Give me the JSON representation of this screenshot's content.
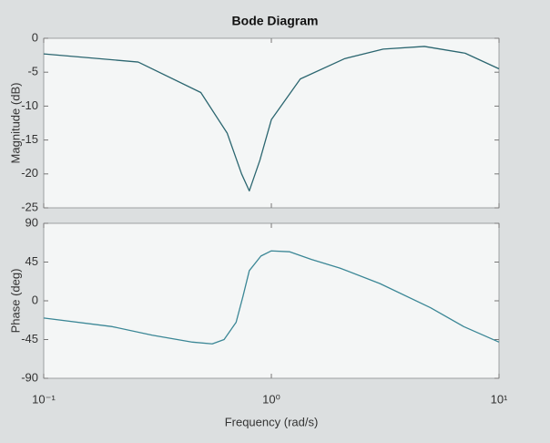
{
  "chart_data": [
    {
      "type": "line",
      "title": "Bode Diagram",
      "ylabel": "Magnitude (dB)",
      "xscale": "log",
      "x": [
        0.1,
        0.26,
        0.49,
        0.64,
        0.74,
        0.8,
        0.89,
        1.0,
        1.34,
        2.1,
        3.1,
        4.7,
        7.1,
        10
      ],
      "values": [
        -2.3,
        -3.5,
        -8,
        -14,
        -20,
        -22.5,
        -18,
        -12,
        -6,
        -3,
        -1.6,
        -1.2,
        -2.2,
        -4.5
      ],
      "color": "#2b6670",
      "xlim": [
        0.1,
        10
      ],
      "ylim": [
        -25,
        0
      ],
      "yticks": [
        0,
        -5,
        -10,
        -15,
        -20,
        -25
      ]
    },
    {
      "type": "line",
      "ylabel": "Phase (deg)",
      "xlabel": "Frequency  (rad/s)",
      "xscale": "log",
      "x": [
        0.1,
        0.2,
        0.3,
        0.45,
        0.55,
        0.62,
        0.7,
        0.75,
        0.8,
        0.9,
        1.0,
        1.2,
        1.5,
        2,
        3,
        5,
        7,
        10
      ],
      "values": [
        -20,
        -30,
        -40,
        -48,
        -50,
        -45,
        -25,
        5,
        35,
        52,
        58,
        57,
        48,
        38,
        20,
        -8,
        -30,
        -48
      ],
      "color": "#3b8796",
      "xlim": [
        0.1,
        10
      ],
      "ylim": [
        -90,
        90
      ],
      "yticks": [
        90,
        45,
        0,
        -45,
        -90
      ],
      "xticks": [
        {
          "value": 0.1,
          "label": "10⁻¹"
        },
        {
          "value": 1,
          "label": "10⁰"
        },
        {
          "value": 10,
          "label": "10¹"
        }
      ]
    }
  ]
}
